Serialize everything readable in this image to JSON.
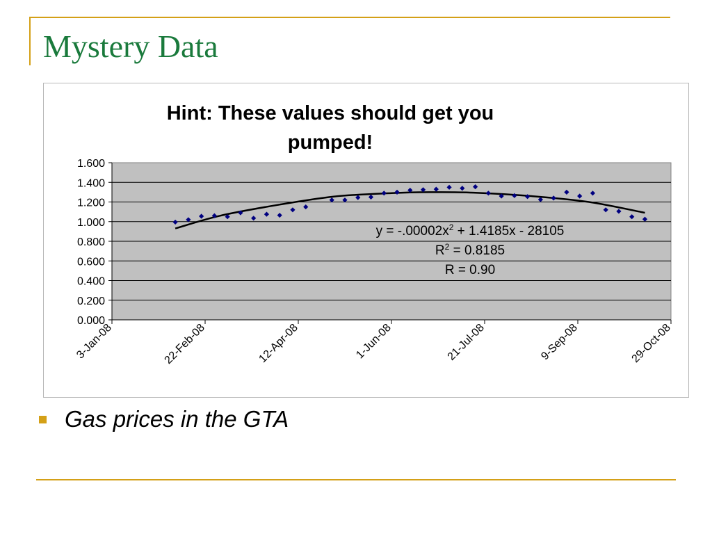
{
  "slide": {
    "title": "Mystery Data",
    "bullet": "Gas prices in the GTA",
    "accent_color": "#d4a017",
    "title_color": "#1a7a3c"
  },
  "chart_data": {
    "type": "scatter",
    "title_lines": [
      "Hint: These values should get you",
      "pumped!"
    ],
    "xlabel": "",
    "ylabel": "",
    "x_ticks": [
      "3-Jan-08",
      "22-Feb-08",
      "12-Apr-08",
      "1-Jun-08",
      "21-Jul-08",
      "9-Sep-08",
      "29-Oct-08"
    ],
    "y_ticks": [
      "0.000",
      "0.200",
      "0.400",
      "0.600",
      "0.800",
      "1.000",
      "1.200",
      "1.400",
      "1.600"
    ],
    "xlim": [
      "2008-01-03",
      "2008-10-29"
    ],
    "ylim": [
      0,
      1.6
    ],
    "grid": true,
    "plot_background": "#c0c0c0",
    "marker_color": "#000080",
    "trendline_color": "#000000",
    "series": [
      {
        "points": [
          [
            "2008-02-06",
            0.995
          ],
          [
            "2008-02-13",
            1.02
          ],
          [
            "2008-02-20",
            1.055
          ],
          [
            "2008-02-27",
            1.06
          ],
          [
            "2008-03-05",
            1.05
          ],
          [
            "2008-03-12",
            1.09
          ],
          [
            "2008-03-19",
            1.035
          ],
          [
            "2008-03-26",
            1.075
          ],
          [
            "2008-04-02",
            1.065
          ],
          [
            "2008-04-09",
            1.12
          ],
          [
            "2008-04-16",
            1.15
          ],
          [
            "2008-04-30",
            1.22
          ],
          [
            "2008-05-07",
            1.22
          ],
          [
            "2008-05-14",
            1.245
          ],
          [
            "2008-05-21",
            1.25
          ],
          [
            "2008-05-28",
            1.29
          ],
          [
            "2008-06-04",
            1.3
          ],
          [
            "2008-06-11",
            1.32
          ],
          [
            "2008-06-18",
            1.325
          ],
          [
            "2008-06-25",
            1.33
          ],
          [
            "2008-07-02",
            1.35
          ],
          [
            "2008-07-09",
            1.34
          ],
          [
            "2008-07-16",
            1.355
          ],
          [
            "2008-07-23",
            1.29
          ],
          [
            "2008-07-30",
            1.26
          ],
          [
            "2008-08-06",
            1.265
          ],
          [
            "2008-08-13",
            1.255
          ],
          [
            "2008-08-20",
            1.225
          ],
          [
            "2008-08-27",
            1.24
          ],
          [
            "2008-09-03",
            1.3
          ],
          [
            "2008-09-10",
            1.26
          ],
          [
            "2008-09-17",
            1.29
          ],
          [
            "2008-09-24",
            1.12
          ],
          [
            "2008-10-01",
            1.105
          ],
          [
            "2008-10-08",
            1.05
          ],
          [
            "2008-10-15",
            1.025
          ]
        ]
      }
    ],
    "trendline": {
      "type": "polynomial",
      "order": 2,
      "samples": [
        [
          "2008-02-06",
          0.93
        ],
        [
          "2008-03-01",
          1.06
        ],
        [
          "2008-04-01",
          1.17
        ],
        [
          "2008-05-01",
          1.255
        ],
        [
          "2008-06-01",
          1.29
        ],
        [
          "2008-06-21",
          1.3
        ],
        [
          "2008-07-15",
          1.295
        ],
        [
          "2008-08-15",
          1.26
        ],
        [
          "2008-09-15",
          1.2
        ],
        [
          "2008-10-15",
          1.09
        ]
      ]
    },
    "annotation": {
      "equation_prefix": "y = -.00002x",
      "equation_suffix": " + 1.4185x - 28105",
      "r2_prefix": "R",
      "r2_suffix": " = 0.8185",
      "superscript": "2",
      "r_line": "R = 0.90"
    }
  }
}
